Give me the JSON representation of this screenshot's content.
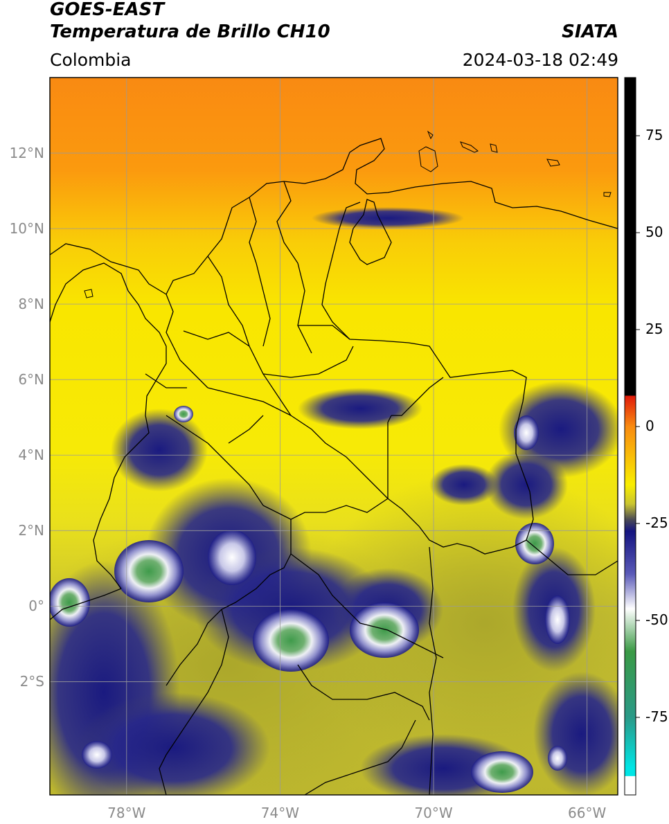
{
  "header": {
    "satellite": "GOES-EAST",
    "product": "Temperatura de Brillo CH10",
    "region": "Colombia",
    "agency": "SIATA",
    "datetime": "2024-03-18 02:49"
  },
  "map": {
    "lon_range": [
      -80,
      -65.2
    ],
    "lat_range": [
      -5,
      14
    ],
    "lat_ticks": [
      {
        "value": 12,
        "label": "12°N"
      },
      {
        "value": 10,
        "label": "10°N"
      },
      {
        "value": 8,
        "label": "8°N"
      },
      {
        "value": 6,
        "label": "6°N"
      },
      {
        "value": 4,
        "label": "4°N"
      },
      {
        "value": 2,
        "label": "2°N"
      },
      {
        "value": 0,
        "label": "0°"
      },
      {
        "value": -2,
        "label": "2°S"
      }
    ],
    "lon_ticks": [
      {
        "value": -78,
        "label": "78°W"
      },
      {
        "value": -74,
        "label": "74°W"
      },
      {
        "value": -70,
        "label": "70°W"
      },
      {
        "value": -66,
        "label": "66°W"
      }
    ],
    "grid": true,
    "colors": {
      "warm_orange": "#f98b10",
      "yellow": "#f9ee00",
      "olive": "#b8b82a",
      "navy": "#1c1c86",
      "cloud_white": "#e8e8f2",
      "cloud_green": "#3d9a4a"
    }
  },
  "colorbar": {
    "range": [
      -95,
      90
    ],
    "ticks": [
      {
        "value": 75,
        "label": "75"
      },
      {
        "value": 50,
        "label": "50"
      },
      {
        "value": 25,
        "label": "25"
      },
      {
        "value": 0,
        "label": "0"
      },
      {
        "value": -25,
        "label": "-25"
      },
      {
        "value": -50,
        "label": "-50"
      },
      {
        "value": -75,
        "label": "-75"
      }
    ],
    "stops": [
      {
        "value": 90,
        "color": "#000000"
      },
      {
        "value": 8,
        "color": "#000000"
      },
      {
        "value": 7.9,
        "color": "#e01a0a"
      },
      {
        "value": 0,
        "color": "#f98b10"
      },
      {
        "value": -15,
        "color": "#f9ee00"
      },
      {
        "value": -20,
        "color": "#c9c430"
      },
      {
        "value": -24,
        "color": "#4a4a55"
      },
      {
        "value": -27,
        "color": "#141480"
      },
      {
        "value": -38,
        "color": "#5a5ab8"
      },
      {
        "value": -47,
        "color": "#ffffff"
      },
      {
        "value": -58,
        "color": "#3a9a45"
      },
      {
        "value": -75,
        "color": "#2a9a88"
      },
      {
        "value": -88,
        "color": "#00e5e5"
      },
      {
        "value": -90.1,
        "color": "#00e5e5"
      },
      {
        "value": -90.2,
        "color": "#ffffff"
      },
      {
        "value": -95,
        "color": "#ffffff"
      }
    ]
  }
}
